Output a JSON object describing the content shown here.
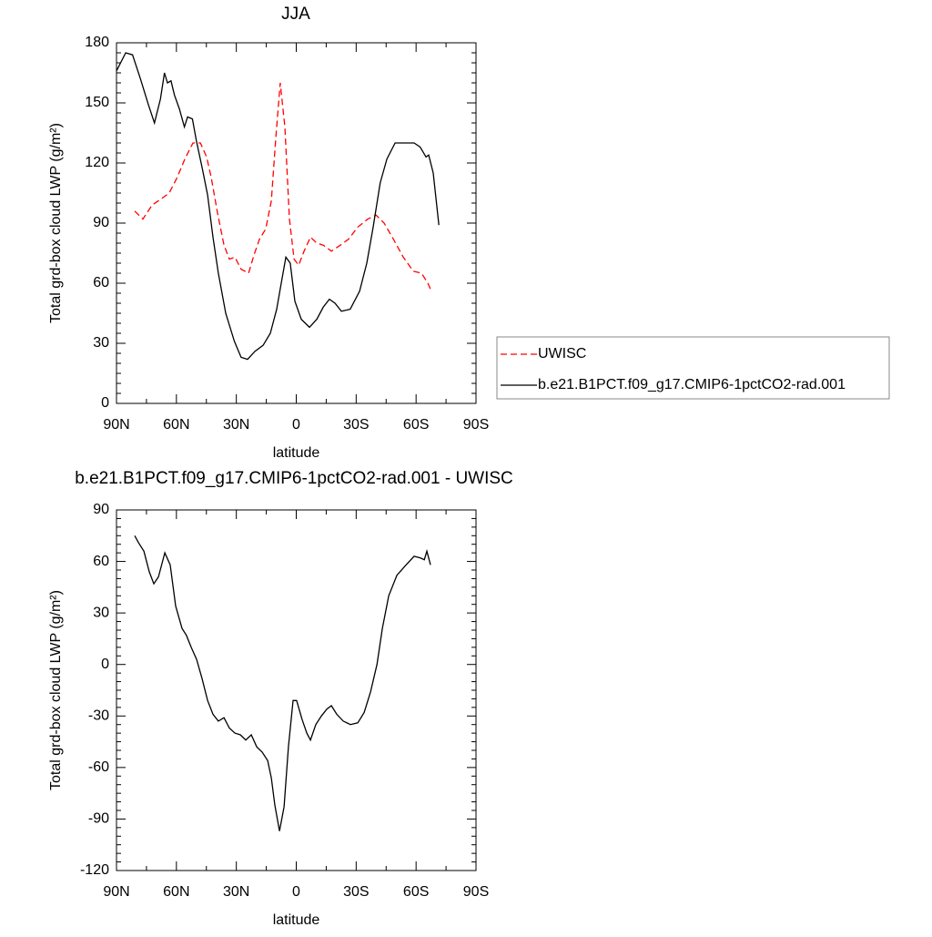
{
  "chart_data": [
    {
      "type": "line",
      "title": "JJA",
      "xlabel": "latitude",
      "ylabel": "Total grd-box cloud LWP (g/m²)",
      "xlim": [
        90,
        -90
      ],
      "xticks": [
        {
          "value": 90,
          "label": "90N"
        },
        {
          "value": 60,
          "label": "60N"
        },
        {
          "value": 30,
          "label": "30N"
        },
        0,
        {
          "value": -30,
          "label": "30S"
        },
        {
          "value": -60,
          "label": "60S"
        },
        {
          "value": -90,
          "label": "90S"
        }
      ],
      "ylim": [
        0,
        180
      ],
      "yticks": [
        0,
        30,
        60,
        90,
        120,
        150,
        180
      ],
      "legend": "right",
      "series": [
        {
          "name": "UWISC",
          "color": "#ff0000",
          "style": "dashed",
          "x": [
            80.9,
            76.8,
            72.2,
            67.7,
            63.6,
            59.5,
            55.8,
            51.7,
            48,
            44.9,
            42.6,
            39.4,
            36.2,
            33.5,
            30.7,
            27.6,
            23.9,
            21.2,
            18.4,
            15.3,
            12.5,
            10.2,
            8,
            5.7,
            3.4,
            1.1,
            -1.2,
            -3.9,
            -7.1,
            -10.3,
            -13.5,
            -17.6,
            -22.1,
            -26.2,
            -30.8,
            -35.8,
            -39.9,
            -44,
            -48.6,
            -53.6,
            -58.6,
            -62.7,
            -65.9,
            -67.2
          ],
          "values": [
            96,
            92,
            99,
            102,
            105,
            113,
            122,
            130,
            130,
            123,
            113,
            95,
            79,
            72,
            73,
            67,
            65,
            74,
            82,
            87,
            101,
            133,
            160,
            138,
            92,
            72,
            69,
            76,
            83,
            80,
            79,
            76,
            79,
            82,
            88,
            92,
            94,
            90,
            82,
            73,
            66,
            65,
            60,
            57
          ]
        },
        {
          "name": "b.e21.B1PCT.f09_g17.CMIP6-1pctCO2-rad.001",
          "color": "#000000",
          "style": "solid",
          "x": [
            90,
            85.4,
            82,
            78,
            74,
            71,
            68,
            66,
            64.5,
            62.7,
            61,
            58.5,
            56,
            54.4,
            52,
            50,
            47,
            44.4,
            41.7,
            39,
            35.3,
            31,
            27.6,
            24.4,
            20.7,
            16.6,
            13,
            9.8,
            7.5,
            5.2,
            3,
            0.7,
            -2.5,
            -6.6,
            -10.3,
            -13.5,
            -16.6,
            -19.4,
            -22.6,
            -27,
            -31.7,
            -35.3,
            -38.5,
            -42,
            -45.4,
            -49.5,
            -53.6,
            -59,
            -62,
            -65,
            -66.3,
            -68.6,
            -71.4
          ],
          "values": [
            166,
            175,
            174,
            162,
            149,
            140,
            152,
            165,
            160,
            161,
            154,
            147,
            138,
            143,
            142,
            131,
            117,
            104,
            83,
            65,
            45,
            31,
            23,
            22,
            26,
            29,
            35,
            47,
            60,
            73,
            70,
            51,
            42,
            38,
            42,
            48,
            52,
            50,
            46,
            47,
            56,
            70,
            88,
            110,
            122,
            130,
            130,
            130,
            128,
            123,
            124,
            115,
            89
          ]
        }
      ]
    },
    {
      "type": "line",
      "title": "b.e21.B1PCT.f09_g17.CMIP6-1pctCO2-rad.001 - UWISC",
      "xlabel": "latitude",
      "ylabel": "Total grd-box cloud LWP (g/m²)",
      "xlim": [
        90,
        -90
      ],
      "xticks": [
        {
          "value": 90,
          "label": "90N"
        },
        {
          "value": 60,
          "label": "60N"
        },
        {
          "value": 30,
          "label": "30N"
        },
        0,
        {
          "value": -30,
          "label": "30S"
        },
        {
          "value": -60,
          "label": "60S"
        },
        {
          "value": -90,
          "label": "90S"
        }
      ],
      "ylim": [
        -120,
        90
      ],
      "yticks": [
        -120,
        -90,
        -60,
        -30,
        0,
        30,
        60,
        90
      ],
      "series": [
        {
          "color": "#000000",
          "style": "solid",
          "x": [
            80.9,
            79,
            76.3,
            73.6,
            71.3,
            69,
            65.8,
            63.1,
            60.4,
            57.2,
            55,
            52.6,
            49.9,
            47.2,
            44.4,
            41.7,
            39,
            36.2,
            33.5,
            30.7,
            28,
            25.3,
            22.5,
            19.8,
            17.1,
            14.3,
            12.5,
            10.7,
            8.4,
            6.1,
            3.9,
            1.6,
            -0.2,
            -2.9,
            -5.3,
            -7.1,
            -9.8,
            -12.6,
            -15.3,
            -17.6,
            -20.3,
            -23.5,
            -27.1,
            -30.8,
            -34,
            -37.2,
            -40.4,
            -43.1,
            -46.3,
            -50.4,
            -55,
            -59,
            -62.2,
            -64.1,
            -65.4,
            -67.2
          ],
          "values": [
            75,
            71,
            66,
            54,
            47,
            51,
            65,
            58,
            34,
            21,
            17,
            10,
            3,
            -8,
            -21,
            -29,
            -33,
            -31,
            -37,
            -40,
            -41,
            -44,
            -41,
            -48,
            -51,
            -56,
            -66,
            -82,
            -97,
            -83,
            -48,
            -21,
            -21,
            -32,
            -40,
            -44,
            -35,
            -30,
            -26,
            -24,
            -29,
            -33,
            -35,
            -34,
            -28,
            -16,
            0,
            21,
            40,
            52,
            58,
            63,
            62,
            61,
            66,
            58
          ]
        }
      ]
    }
  ]
}
